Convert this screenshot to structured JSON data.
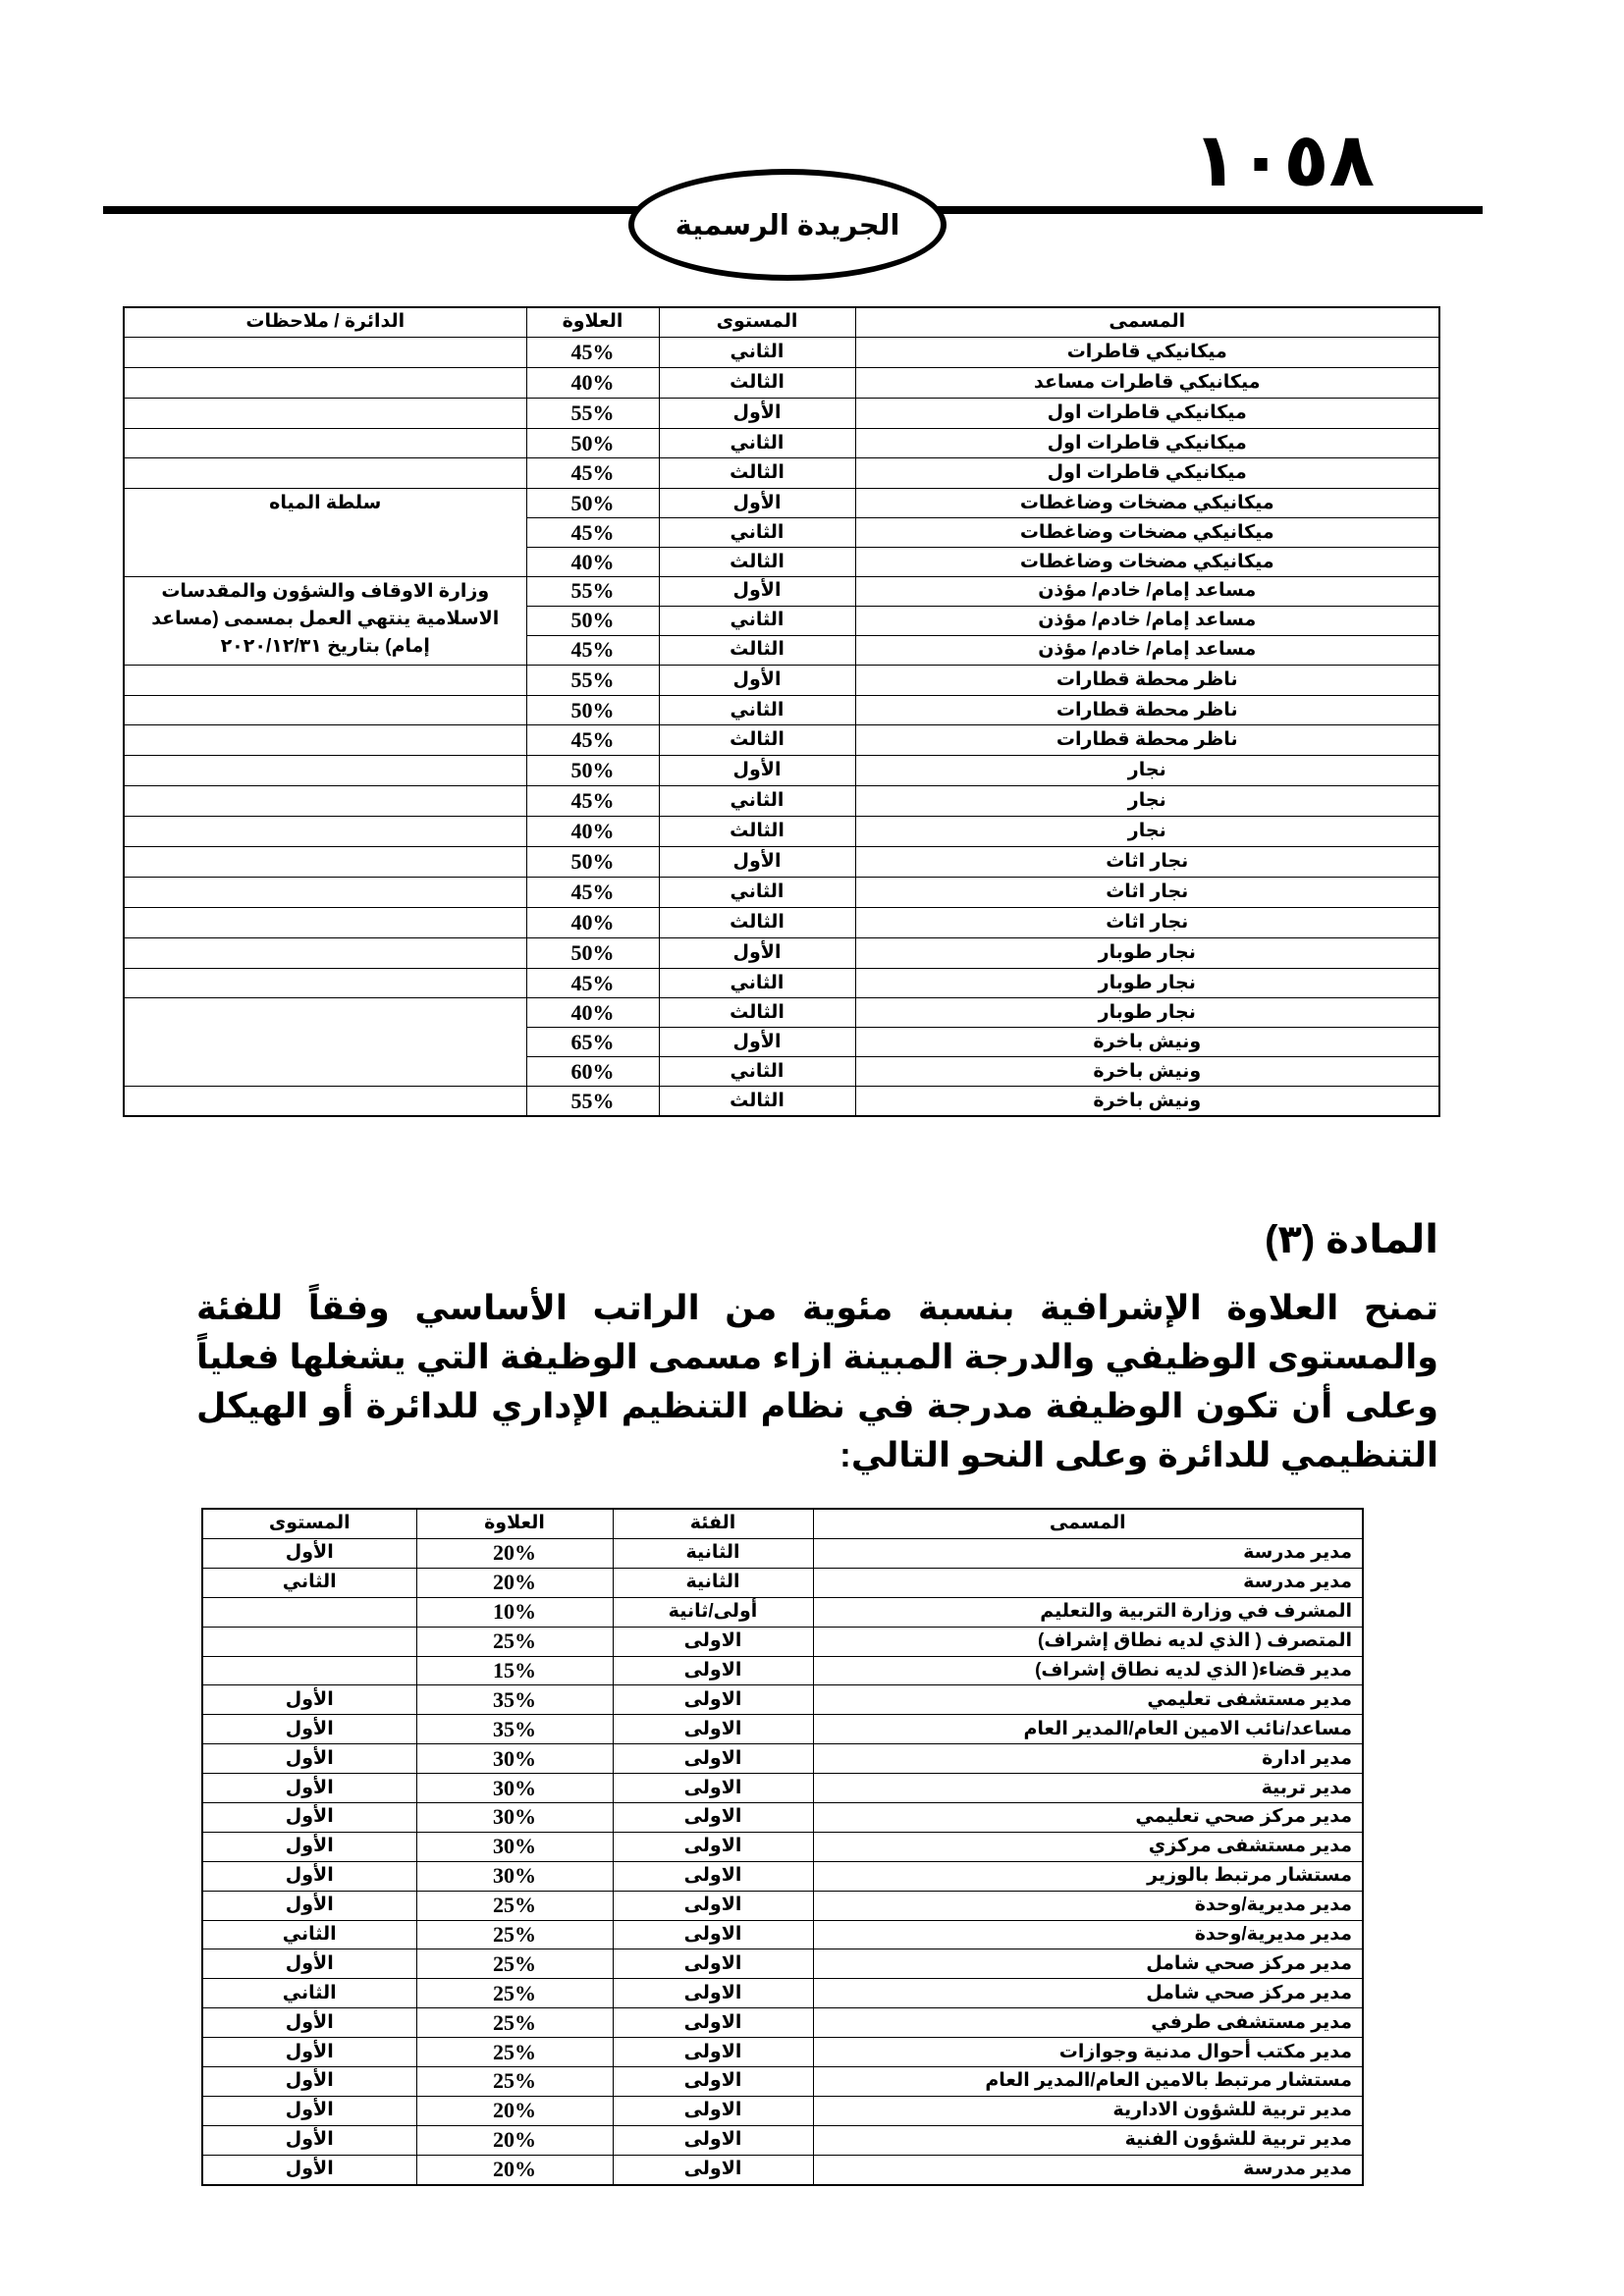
{
  "header": {
    "page_number": "١٠٥٨",
    "publication": "الجريدة الرسمية"
  },
  "table1": {
    "headers": {
      "title": "المسمى",
      "level": "المستوى",
      "allowance": "العلاوة",
      "notes": "الدائرة / ملاحظات"
    },
    "rows": [
      {
        "title": "ميكانيكي قاطرات",
        "level": "الثاني",
        "allowance": "45%"
      },
      {
        "title": "ميكانيكي قاطرات مساعد",
        "level": "الثالث",
        "allowance": "40%"
      },
      {
        "title": "ميكانيكي قاطرات اول",
        "level": "الأول",
        "allowance": "55%"
      },
      {
        "title": "ميكانيكي قاطرات اول",
        "level": "الثاني",
        "allowance": "50%"
      },
      {
        "title": "ميكانيكي قاطرات اول",
        "level": "الثالث",
        "allowance": "45%"
      },
      {
        "title": "ميكانيكي مضخات وضاغطات",
        "level": "الأول",
        "allowance": "50%"
      },
      {
        "title": "ميكانيكي مضخات وضاغطات",
        "level": "الثاني",
        "allowance": "45%"
      },
      {
        "title": "ميكانيكي مضخات وضاغطات",
        "level": "الثالث",
        "allowance": "40%"
      },
      {
        "title": "مساعد إمام/ خادم/ مؤذن",
        "level": "الأول",
        "allowance": "55%"
      },
      {
        "title": "مساعد إمام/ خادم/ مؤذن",
        "level": "الثاني",
        "allowance": "50%"
      },
      {
        "title": "مساعد إمام/ خادم/ مؤذن",
        "level": "الثالث",
        "allowance": "45%"
      },
      {
        "title": "ناظر محطة قطارات",
        "level": "الأول",
        "allowance": "55%"
      },
      {
        "title": "ناظر محطة قطارات",
        "level": "الثاني",
        "allowance": "50%"
      },
      {
        "title": "ناظر محطة قطارات",
        "level": "الثالث",
        "allowance": "45%"
      },
      {
        "title": "نجار",
        "level": "الأول",
        "allowance": "50%"
      },
      {
        "title": "نجار",
        "level": "الثاني",
        "allowance": "45%"
      },
      {
        "title": "نجار",
        "level": "الثالث",
        "allowance": "40%"
      },
      {
        "title": "نجار اثاث",
        "level": "الأول",
        "allowance": "50%"
      },
      {
        "title": "نجار اثاث",
        "level": "الثاني",
        "allowance": "45%"
      },
      {
        "title": "نجار اثاث",
        "level": "الثالث",
        "allowance": "40%"
      },
      {
        "title": "نجار طوبار",
        "level": "الأول",
        "allowance": "50%"
      },
      {
        "title": "نجار طوبار",
        "level": "الثاني",
        "allowance": "45%"
      },
      {
        "title": "نجار طوبار",
        "level": "الثالث",
        "allowance": "40%"
      },
      {
        "title": "ونيش باخرة",
        "level": "الأول",
        "allowance": "65%"
      },
      {
        "title": "ونيش باخرة",
        "level": "الثاني",
        "allowance": "60%"
      },
      {
        "title": "ونيش باخرة",
        "level": "الثالث",
        "allowance": "55%"
      }
    ],
    "note_groups": [
      {
        "span": 1,
        "text": ""
      },
      {
        "span": 1,
        "text": ""
      },
      {
        "span": 1,
        "text": ""
      },
      {
        "span": 1,
        "text": ""
      },
      {
        "span": 1,
        "text": ""
      },
      {
        "span": 3,
        "text": "سلطة المياه"
      },
      {
        "span": 3,
        "text": "وزارة الاوقاف والشؤون والمقدسات الاسلامية ينتهي العمل بمسمى (مساعد إمام) بتاريخ ٢٠٢٠/١٢/٣١"
      },
      {
        "span": 1,
        "text": ""
      },
      {
        "span": 1,
        "text": ""
      },
      {
        "span": 1,
        "text": ""
      },
      {
        "span": 1,
        "text": ""
      },
      {
        "span": 1,
        "text": ""
      },
      {
        "span": 1,
        "text": ""
      },
      {
        "span": 1,
        "text": ""
      },
      {
        "span": 1,
        "text": ""
      },
      {
        "span": 1,
        "text": ""
      },
      {
        "span": 1,
        "text": ""
      },
      {
        "span": 1,
        "text": ""
      },
      {
        "span": 3,
        "text": ""
      }
    ]
  },
  "article": {
    "heading": "المادة (٣)",
    "text": "تمنح العلاوة الإشرافية بنسبة مئوية من الراتب الأساسي وفقاً للفئة والمستوى الوظيفي والدرجة المبينة ازاء مسمى الوظيفة التي يشغلها فعلياً وعلى أن تكون الوظيفة مدرجة في نظام التنظيم الإداري للدائرة أو الهيكل التنظيمي للدائرة وعلى النحو التالي:"
  },
  "table2": {
    "headers": {
      "title": "المسمى",
      "category": "الفئة",
      "allowance": "العلاوة",
      "level": "المستوى"
    },
    "rows": [
      {
        "title": "مدير مدرسة",
        "category": "الثانية",
        "allowance": "20%",
        "level": "الأول"
      },
      {
        "title": "مدير مدرسة",
        "category": "الثانية",
        "allowance": "20%",
        "level": "الثاني"
      },
      {
        "title": "المشرف في وزارة التربية والتعليم",
        "category": "أولى/ثانية",
        "allowance": "10%",
        "level": ""
      },
      {
        "title": "المتصرف ( الذي لديه نطاق إشراف)",
        "category": "الاولى",
        "allowance": "25%",
        "level": ""
      },
      {
        "title": "مدير قضاء( الذي لديه نطاق إشراف)",
        "category": "الاولى",
        "allowance": "15%",
        "level": ""
      },
      {
        "title": "مدير مستشفى تعليمي",
        "category": "الاولى",
        "allowance": "35%",
        "level": "الأول"
      },
      {
        "title": "مساعد/نائب الامين العام/المدير العام",
        "category": "الاولى",
        "allowance": "35%",
        "level": "الأول"
      },
      {
        "title": "مدير ادارة",
        "category": "الاولى",
        "allowance": "30%",
        "level": "الأول"
      },
      {
        "title": "مدير تربية",
        "category": "الاولى",
        "allowance": "30%",
        "level": "الأول"
      },
      {
        "title": "مدير مركز صحي تعليمي",
        "category": "الاولى",
        "allowance": "30%",
        "level": "الأول"
      },
      {
        "title": "مدير مستشفى مركزي",
        "category": "الاولى",
        "allowance": "30%",
        "level": "الأول"
      },
      {
        "title": "مستشار مرتبط بالوزير",
        "category": "الاولى",
        "allowance": "30%",
        "level": "الأول"
      },
      {
        "title": "مدير مديرية/وحدة",
        "category": "الاولى",
        "allowance": "25%",
        "level": "الأول"
      },
      {
        "title": "مدير مديرية/وحدة",
        "category": "الاولى",
        "allowance": "25%",
        "level": "الثاني"
      },
      {
        "title": "مدير مركز صحي شامل",
        "category": "الاولى",
        "allowance": "25%",
        "level": "الأول"
      },
      {
        "title": "مدير مركز صحي شامل",
        "category": "الاولى",
        "allowance": "25%",
        "level": "الثاني"
      },
      {
        "title": "مدير مستشفى طرفي",
        "category": "الاولى",
        "allowance": "25%",
        "level": "الأول"
      },
      {
        "title": "مدير مكتب أحوال مدنية وجوازات",
        "category": "الاولى",
        "allowance": "25%",
        "level": "الأول"
      },
      {
        "title": "مستشار مرتبط بالامين العام/المدير العام",
        "category": "الاولى",
        "allowance": "25%",
        "level": "الأول"
      },
      {
        "title": "مدير تربية للشؤون الادارية",
        "category": "الاولى",
        "allowance": "20%",
        "level": "الأول"
      },
      {
        "title": "مدير تربية للشؤون الفنية",
        "category": "الاولى",
        "allowance": "20%",
        "level": "الأول"
      },
      {
        "title": "مدير مدرسة",
        "category": "الاولى",
        "allowance": "20%",
        "level": "الأول"
      }
    ]
  }
}
